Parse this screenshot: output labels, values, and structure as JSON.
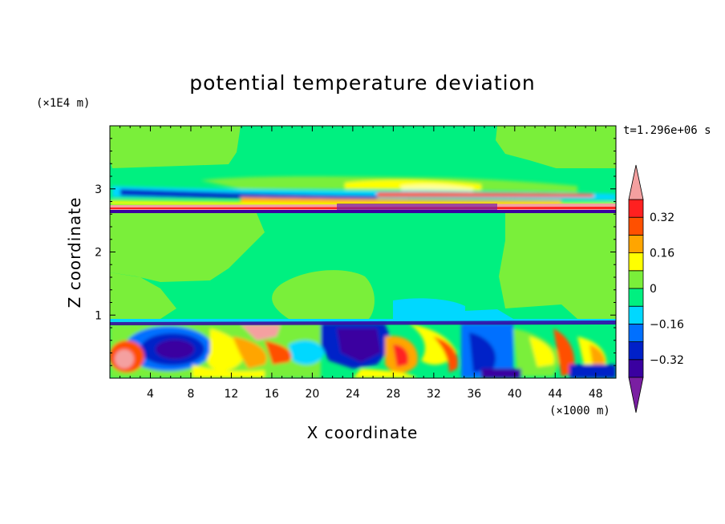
{
  "chart_data": {
    "type": "heatmap",
    "title": "potential temperature deviation",
    "xlabel": "X coordinate",
    "ylabel": "Z coordinate",
    "x_unit": "(×1000 m)",
    "y_unit": "(×1E4 m)",
    "time_label": "t=1.296e+06 s",
    "xlim": [
      0,
      50
    ],
    "ylim": [
      0,
      4
    ],
    "x_ticks": [
      "4",
      "8",
      "12",
      "16",
      "20",
      "24",
      "28",
      "32",
      "36",
      "40",
      "44",
      "48"
    ],
    "y_ticks": [
      "1",
      "2",
      "3"
    ],
    "colorbar": {
      "tick_labels": [
        "0.32",
        "0.16",
        "0",
        "−0.16",
        "−0.32"
      ],
      "levels": [
        -0.4,
        -0.32,
        -0.24,
        -0.16,
        -0.08,
        0,
        0.08,
        0.16,
        0.24,
        0.32,
        0.4
      ],
      "colors": [
        "#7a1fa2",
        "#3a00a0",
        "#0020c8",
        "#0070ff",
        "#00d8ff",
        "#00f080",
        "#7aef3a",
        "#ffff00",
        "#ffa500",
        "#ff5000",
        "#ff2020",
        "#f4a0a0"
      ]
    }
  }
}
